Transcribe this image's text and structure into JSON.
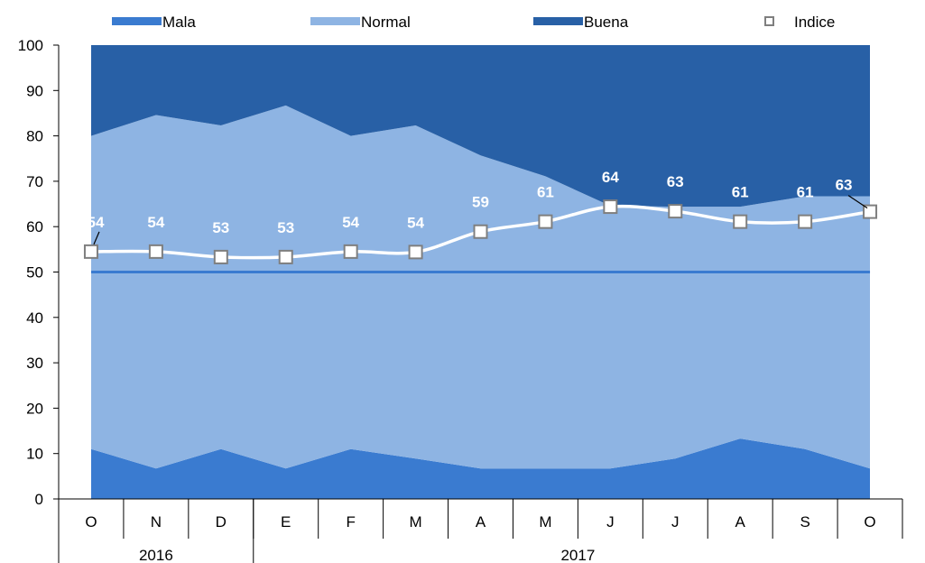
{
  "chart_data": {
    "type": "area",
    "categories": [
      "O",
      "N",
      "D",
      "E",
      "F",
      "M",
      "A",
      "M",
      "J",
      "J",
      "A",
      "S",
      "O"
    ],
    "year_groups": [
      {
        "label": "2016",
        "span": 3
      },
      {
        "label": "2017",
        "span": 10
      }
    ],
    "series": [
      {
        "name": "Mala",
        "kind": "stacked-area",
        "color": "#3a7bd0",
        "values": [
          11,
          6.7,
          11,
          6.7,
          11,
          8.9,
          6.7,
          6.7,
          6.7,
          8.9,
          13.3,
          11,
          6.7
        ]
      },
      {
        "name": "Normal",
        "kind": "stacked-area",
        "color": "#8eb4e3",
        "values": [
          69,
          77.9,
          71.3,
          80,
          69,
          73.4,
          69,
          64.4,
          57.9,
          55.5,
          51.1,
          55.7,
          60
        ]
      },
      {
        "name": "Buena",
        "kind": "stacked-area",
        "color": "#2860a6",
        "values": [
          20,
          15.4,
          17.7,
          13.3,
          20,
          17.7,
          24.3,
          28.9,
          35.4,
          35.6,
          35.6,
          33.3,
          33.3
        ]
      },
      {
        "name": "Indice",
        "kind": "line",
        "color": "#ffffff",
        "values": [
          54.5,
          54.5,
          53.3,
          53.3,
          54.5,
          54.4,
          58.9,
          61.1,
          64.4,
          63.4,
          61.1,
          61.1,
          63.3
        ],
        "labels": [
          "54",
          "54",
          "53",
          "53",
          "54",
          "54",
          "59",
          "61",
          "64",
          "63",
          "61",
          "61",
          "63"
        ]
      }
    ],
    "reference_line": {
      "value": 50,
      "color": "#3a7bd0"
    },
    "ylim": [
      0,
      100
    ],
    "yticks": [
      0,
      10,
      20,
      30,
      40,
      50,
      60,
      70,
      80,
      90,
      100
    ],
    "title": "",
    "xlabel": "",
    "ylabel": "",
    "legend_position": "top"
  }
}
